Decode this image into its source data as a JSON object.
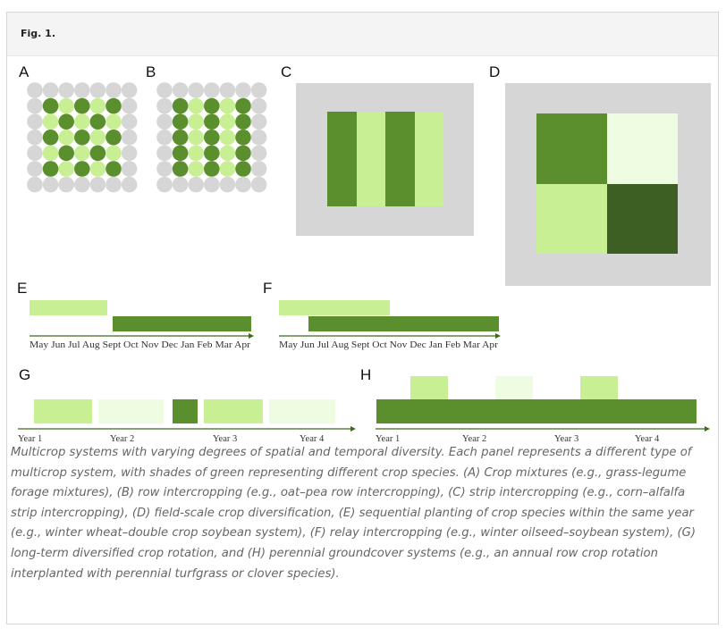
{
  "figure": {
    "label": "Fig. 1.",
    "panels": {
      "A": "A",
      "B": "B",
      "C": "C",
      "D": "D",
      "E": "E",
      "F": "F",
      "G": "G",
      "H": "H"
    },
    "month_axis": "May Jun Jul Aug Sept Oct Nov Dec Jan Feb Mar Apr",
    "year_axis": [
      "Year 1",
      "Year 2",
      "Year 3",
      "Year 4"
    ],
    "caption": "Multicrop systems with varying degrees of spatial and temporal diversity. Each panel represents a different type of multicrop system, with shades of green representing different crop species. (A) Crop mixtures (e.g., grass-legume forage mixtures), (B) row intercropping (e.g., oat–pea row intercropping), (C) strip intercropping (e.g., corn–alfalfa strip intercropping), (D) field-scale crop diversification, (E) sequential planting of crop species within the same year (e.g., winter wheat–double crop soybean system), (F) relay intercropping (e.g., winter oilseed–soybean system), (G) long-term diversified crop rotation, and (H) perennial groundcover systems (e.g., an annual row crop rotation interplanted with perennial turfgrass or clover species)."
  },
  "colors": {
    "gray": "#d6d6d6",
    "dark_green": "#5b8f2e",
    "light_green": "#c9ef95",
    "pale_green": "#eefde2",
    "deep_green": "#3e5f24",
    "axis": "#3c6b1f"
  }
}
